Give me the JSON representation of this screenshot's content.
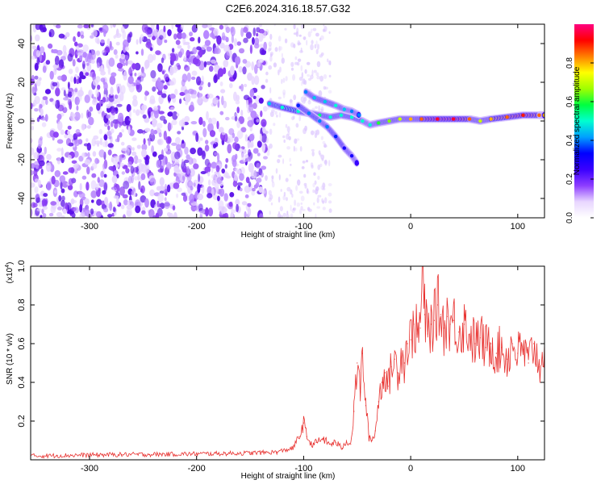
{
  "title": "C2E6.2024.316.18.57.G32",
  "chart_data": [
    {
      "type": "heatmap",
      "xlabel": "Height of straight line (km)",
      "ylabel": "Frequency (Hz)",
      "xlim": [
        -355,
        125
      ],
      "ylim": [
        -50,
        50
      ],
      "xticks": [
        -300,
        -200,
        -100,
        0,
        100
      ],
      "yticks": [
        -40,
        -20,
        0,
        20,
        40
      ],
      "colorbar": {
        "label": "Normalized spectral amplitude",
        "ticks": [
          "0.0",
          "0.2",
          "0.4",
          "0.6",
          "0.8"
        ],
        "range": [
          0,
          1
        ],
        "colors": [
          "#ffffff",
          "#e8d6ff",
          "#8c3cff",
          "#3a00ff",
          "#0000ff",
          "#00a0ff",
          "#00ffd0",
          "#00ff40",
          "#a0ff00",
          "#ffff00",
          "#ff8000",
          "#ff0000",
          "#ff0080"
        ]
      },
      "noise_region": {
        "x": [
          -355,
          -135
        ],
        "y": [
          -50,
          50
        ],
        "amplitude": 0.15
      },
      "ridges": [
        {
          "name": "main",
          "points": [
            [
              -132,
              9,
              0.45
            ],
            [
              -120,
              7,
              0.5
            ],
            [
              -105,
              5,
              0.5
            ],
            [
              -95,
              4,
              0.55
            ],
            [
              -85,
              3,
              0.55
            ],
            [
              -75,
              2,
              0.5
            ],
            [
              -65,
              3,
              0.5
            ],
            [
              -55,
              2,
              0.5
            ],
            [
              -45,
              0,
              0.5
            ],
            [
              -38,
              -2,
              0.5
            ],
            [
              -30,
              -1,
              0.6
            ],
            [
              -20,
              0,
              0.65
            ],
            [
              -10,
              1,
              0.7
            ],
            [
              0,
              1,
              0.8
            ],
            [
              10,
              1,
              0.85
            ],
            [
              25,
              1,
              0.95
            ],
            [
              40,
              1,
              0.95
            ],
            [
              55,
              1,
              0.85
            ],
            [
              65,
              0,
              0.7
            ],
            [
              75,
              1,
              0.8
            ],
            [
              90,
              2,
              0.85
            ],
            [
              105,
              3,
              0.9
            ],
            [
              120,
              3,
              0.85
            ],
            [
              125,
              3,
              0.8
            ]
          ]
        },
        {
          "name": "upper",
          "points": [
            [
              -98,
              15,
              0.4
            ],
            [
              -90,
              12,
              0.45
            ],
            [
              -80,
              10,
              0.45
            ],
            [
              -70,
              8,
              0.5
            ],
            [
              -62,
              6,
              0.45
            ],
            [
              -55,
              5,
              0.4
            ],
            [
              -48,
              3,
              0.4
            ]
          ]
        },
        {
          "name": "lower",
          "points": [
            [
              -105,
              8,
              0.35
            ],
            [
              -95,
              4,
              0.4
            ],
            [
              -85,
              0,
              0.4
            ],
            [
              -78,
              -3,
              0.4
            ],
            [
              -70,
              -8,
              0.35
            ],
            [
              -62,
              -14,
              0.3
            ],
            [
              -55,
              -18,
              0.3
            ],
            [
              -50,
              -22,
              0.25
            ]
          ]
        }
      ]
    },
    {
      "type": "line",
      "xlabel": "Height of straight line (km)",
      "ylabel": "SNR (10 * v/v)",
      "multiplier": "(x10",
      "multiplier_exp": "4",
      "xlim": [
        -355,
        125
      ],
      "ylim": [
        0,
        1.0
      ],
      "xticks": [
        -300,
        -200,
        -100,
        0,
        100
      ],
      "yticks": [
        "0.2",
        "0.4",
        "0.6",
        "0.8",
        "1.0"
      ],
      "ytick_values": [
        0.2,
        0.4,
        0.6,
        0.8,
        1.0
      ],
      "color": "#e8302e",
      "series": [
        {
          "x": [
            -355,
            -330,
            -300,
            -270,
            -240,
            -210,
            -180,
            -150,
            -125,
            -110,
            -104,
            -100,
            -97,
            -93,
            -88,
            -82,
            -76,
            -70,
            -64,
            -60,
            -56,
            -53,
            -50,
            -47,
            -45,
            -42,
            -39,
            -36,
            -33,
            -30,
            -27,
            -24,
            -21,
            -18,
            -15,
            -12,
            -9,
            -6,
            -3,
            0,
            3,
            6,
            9,
            11,
            13,
            16,
            19,
            22,
            25,
            28,
            31,
            34,
            37,
            40,
            45,
            50,
            55,
            60,
            65,
            70,
            75,
            80,
            85,
            90,
            95,
            100,
            105,
            110,
            115,
            120,
            125
          ],
          "values": [
            0.02,
            0.022,
            0.025,
            0.027,
            0.028,
            0.03,
            0.032,
            0.035,
            0.04,
            0.06,
            0.12,
            0.19,
            0.12,
            0.08,
            0.09,
            0.11,
            0.08,
            0.09,
            0.06,
            0.1,
            0.08,
            0.25,
            0.5,
            0.35,
            0.55,
            0.28,
            0.12,
            0.1,
            0.15,
            0.3,
            0.4,
            0.45,
            0.38,
            0.48,
            0.52,
            0.45,
            0.55,
            0.5,
            0.6,
            0.62,
            0.7,
            0.65,
            0.68,
            1.0,
            0.75,
            0.65,
            0.7,
            0.72,
            0.8,
            0.75,
            0.68,
            0.74,
            0.7,
            0.72,
            0.66,
            0.7,
            0.65,
            0.6,
            0.63,
            0.58,
            0.6,
            0.55,
            0.58,
            0.52,
            0.6,
            0.55,
            0.57,
            0.5,
            0.6,
            0.48,
            0.6
          ]
        }
      ]
    }
  ]
}
